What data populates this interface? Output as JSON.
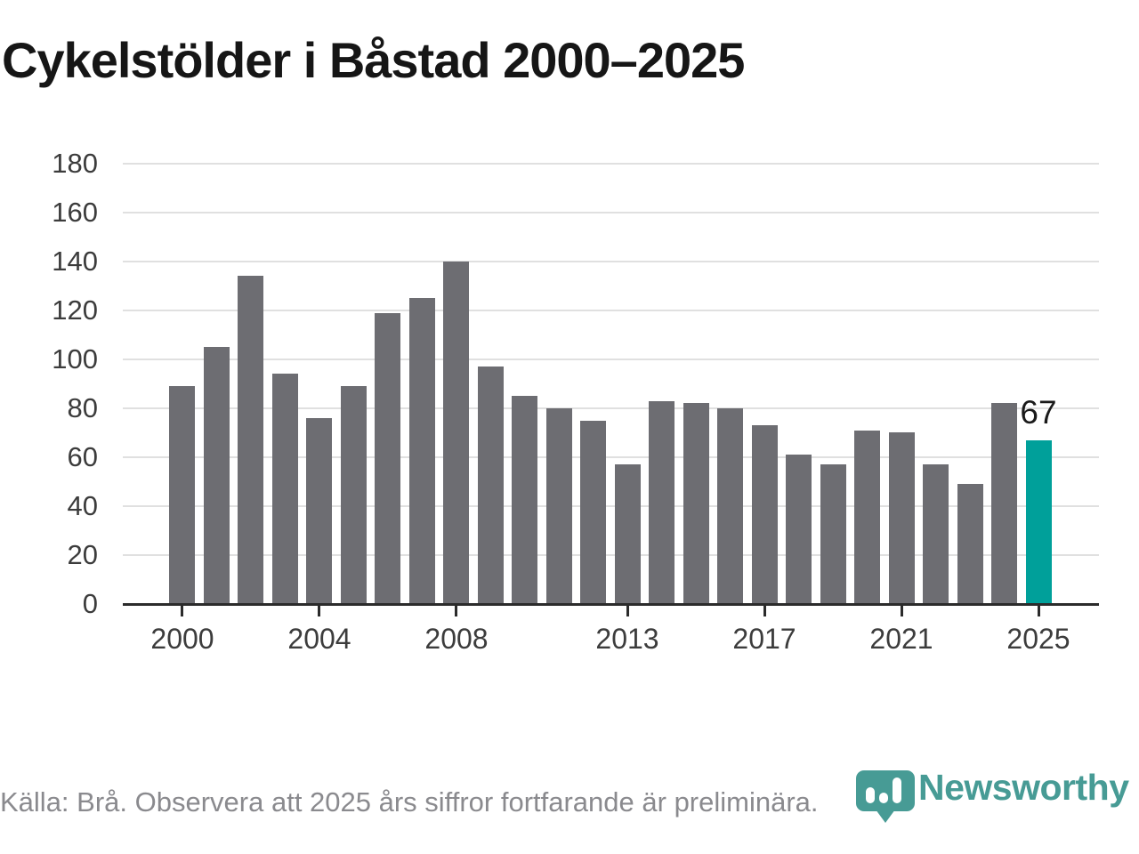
{
  "title": "Cykelstölder i Båstad 2000–2025",
  "footer": {
    "source_note": "Källa: Brå. Observera att 2025 års siffror fortfarande är preliminära."
  },
  "branding": {
    "logo_text": "Newsworthy",
    "logo_icon": "newsworthy-pin-barchart-icon",
    "logo_color": "#479b95"
  },
  "colors": {
    "bar": "#6d6d72",
    "highlight": "#00a09a",
    "gridline": "#e0e0e0",
    "axis": "#2b2b2b",
    "tick_label": "#3c3c3c",
    "value_label": "#1a1a1a",
    "title": "#161616",
    "footer_text": "#8a8a8e"
  },
  "chart_data": {
    "type": "bar",
    "title": "Cykelstölder i Båstad 2000–2025",
    "x": [
      2000,
      2001,
      2002,
      2003,
      2004,
      2005,
      2006,
      2007,
      2008,
      2009,
      2010,
      2011,
      2012,
      2013,
      2014,
      2015,
      2016,
      2017,
      2018,
      2019,
      2020,
      2021,
      2022,
      2023,
      2024,
      2025
    ],
    "values": [
      89,
      105,
      134,
      94,
      76,
      89,
      119,
      125,
      140,
      97,
      85,
      80,
      75,
      57,
      83,
      82,
      80,
      73,
      61,
      57,
      71,
      70,
      57,
      49,
      82,
      67
    ],
    "highlight_index": 25,
    "highlighted_value_label": "67",
    "xlabel": "",
    "ylabel": "",
    "ylim": [
      0,
      180
    ],
    "ytick_interval": 20,
    "ytick_labels": [
      "0",
      "20",
      "40",
      "60",
      "80",
      "100",
      "120",
      "140",
      "160",
      "180"
    ],
    "xtick_labels": [
      "2000",
      "2004",
      "2008",
      "2013",
      "2017",
      "2021",
      "2025"
    ],
    "grid": "horizontal",
    "legend": "none"
  }
}
